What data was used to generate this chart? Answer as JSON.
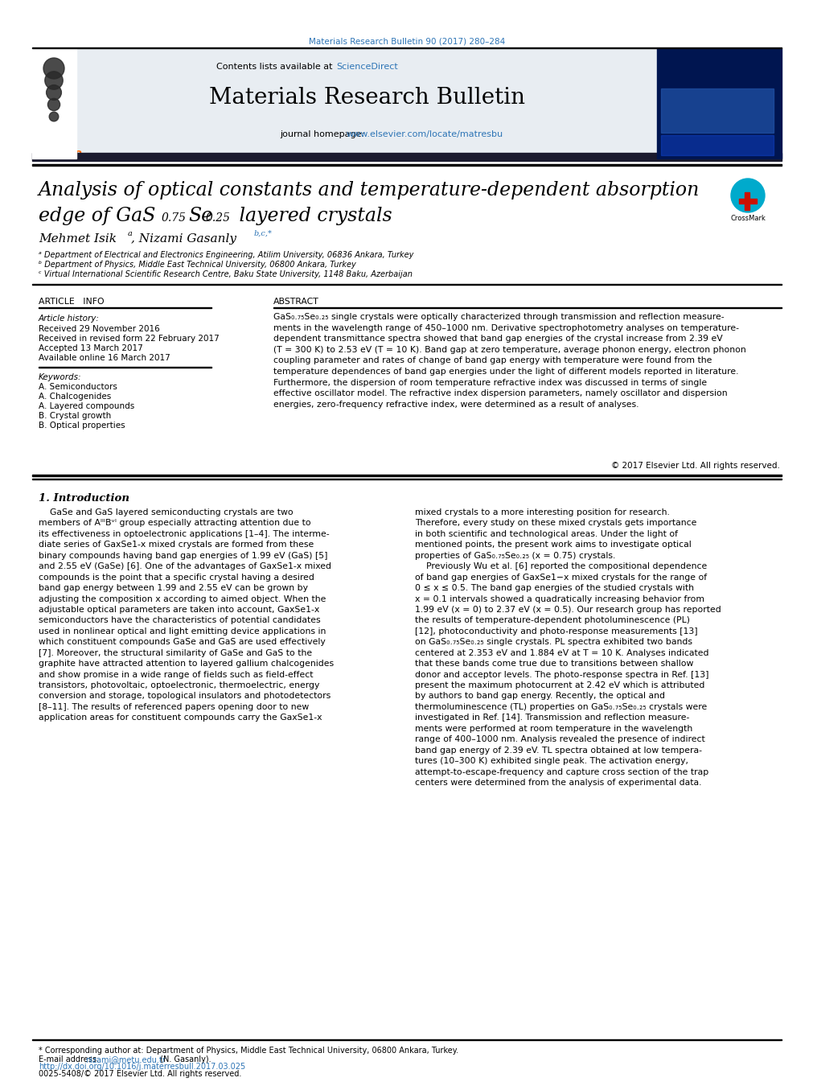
{
  "journal_ref": "Materials Research Bulletin 90 (2017) 280–284",
  "journal_name": "Materials Research Bulletin",
  "contents_text": "Contents lists available at ",
  "science_direct": "ScienceDirect",
  "journal_homepage": "journal homepage: ",
  "homepage_url": "www.elsevier.com/locate/matresbu",
  "title_line1": "Analysis of optical constants and temperature-dependent absorption",
  "title_line2_pre": "edge of GaS",
  "title_sub1": "0.75",
  "title_mid": "Se",
  "title_sub2": "0.25",
  "title_line2_end": " layered crystals",
  "affil_a": "ᵃ Department of Electrical and Electronics Engineering, Atilim University, 06836 Ankara, Turkey",
  "affil_b": "ᵇ Department of Physics, Middle East Technical University, 06800 Ankara, Turkey",
  "affil_c": "ᶜ Virtual International Scientific Research Centre, Baku State University, 1148 Baku, Azerbaijan",
  "article_info_header": "ARTICLE   INFO",
  "article_history_label": "Article history:",
  "received": "Received 29 November 2016",
  "revised": "Received in revised form 22 February 2017",
  "accepted": "Accepted 13 March 2017",
  "online": "Available online 16 March 2017",
  "keywords_label": "Keywords:",
  "keywords": [
    "A. Semiconductors",
    "A. Chalcogenides",
    "A. Layered compounds",
    "B. Crystal growth",
    "B. Optical properties"
  ],
  "abstract_header": "ABSTRACT",
  "copyright": "© 2017 Elsevier Ltd. All rights reserved.",
  "footnote_star": "* Corresponding author at: Department of Physics, Middle East Technical University, 06800 Ankara, Turkey.",
  "footnote_email_label": "E-mail address: ",
  "footnote_email": "nizami@metu.edu.tr",
  "footnote_email_end": " (N. Gasanly).",
  "doi_text": "http://dx.doi.org/10.1016/j.materresbull.2017.03.025",
  "issn_text": "0025-5408/© 2017 Elsevier Ltd. All rights reserved.",
  "bg_color": "#ffffff",
  "header_bg": "#e8edf2",
  "elsevier_orange": "#ff6600",
  "link_color": "#2e75b6",
  "text_color": "#000000"
}
